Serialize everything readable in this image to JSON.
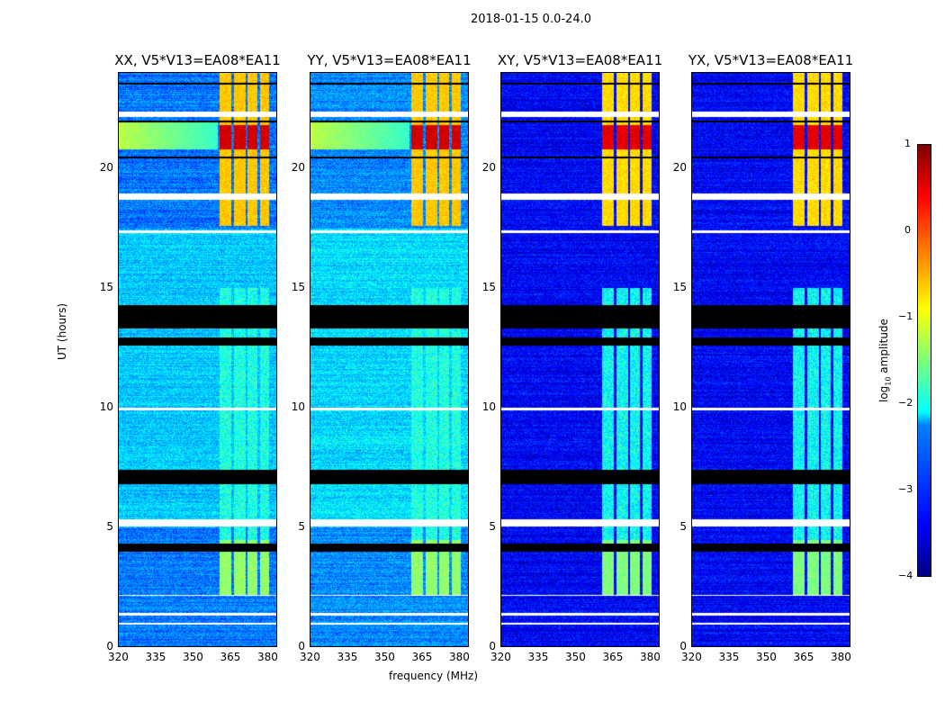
{
  "chart_data": {
    "type": "heatmap",
    "title": "2018-01-15 0.0-24.0",
    "xlabel": "frequency (MHz)",
    "ylabel": "UT (hours)",
    "xlim": [
      320,
      384
    ],
    "ylim": [
      0,
      24
    ],
    "xticks": [
      "320",
      "335",
      "350",
      "365",
      "380"
    ],
    "xtick_values": [
      320,
      335,
      350,
      365,
      380
    ],
    "yticks": [
      "0",
      "5",
      "10",
      "15",
      "20"
    ],
    "ytick_values": [
      0,
      5,
      10,
      15,
      20
    ],
    "panels": [
      {
        "title": "XX, V5*V13=EA08*EA11",
        "background_log10": -2.8,
        "cross": false
      },
      {
        "title": "YY, V5*V13=EA08*EA11",
        "background_log10": -2.7,
        "cross": false
      },
      {
        "title": "XY, V5*V13=EA08*EA11",
        "background_log10": -3.4,
        "cross": true
      },
      {
        "title": "YX, V5*V13=EA08*EA11",
        "background_log10": -3.4,
        "cross": true
      }
    ],
    "rfi_subbands_mhz": [
      [
        360.5,
        365.5
      ],
      [
        366.5,
        371
      ],
      [
        372,
        376
      ],
      [
        377,
        380.5
      ]
    ],
    "rfi_periods_hours": [
      {
        "from": 17.6,
        "to": 24,
        "log10": -0.6
      },
      {
        "from": 20.8,
        "to": 21.8,
        "log10": 0.6
      },
      {
        "from": 2.2,
        "to": 4.5,
        "log10": -1.4
      },
      {
        "from": 4.5,
        "to": 15,
        "log10": -2.0
      }
    ],
    "flagged_black_hours": [
      [
        13.3,
        14.3
      ],
      [
        12.6,
        12.95
      ],
      [
        6.8,
        7.4
      ],
      [
        4.0,
        4.35
      ],
      [
        21.9,
        22.0
      ],
      [
        23.5,
        23.55
      ],
      [
        20.4,
        20.5
      ]
    ],
    "flagged_white_hours": [
      [
        18.7,
        18.95
      ],
      [
        22.15,
        22.35
      ],
      [
        5.05,
        5.35
      ],
      [
        0.95,
        1.05
      ],
      [
        1.35,
        1.45
      ],
      [
        17.3,
        17.4
      ],
      [
        9.9,
        10.0
      ],
      [
        2.15,
        2.2
      ]
    ],
    "colorbar": {
      "label": "log10 amplitude",
      "label_main": "log",
      "label_sub": "10",
      "label_rest": " amplitude",
      "range": [
        -4,
        1
      ],
      "ticks": [
        "1",
        "0",
        "−1",
        "−2",
        "−3",
        "−4"
      ],
      "colormap": "jet"
    }
  }
}
